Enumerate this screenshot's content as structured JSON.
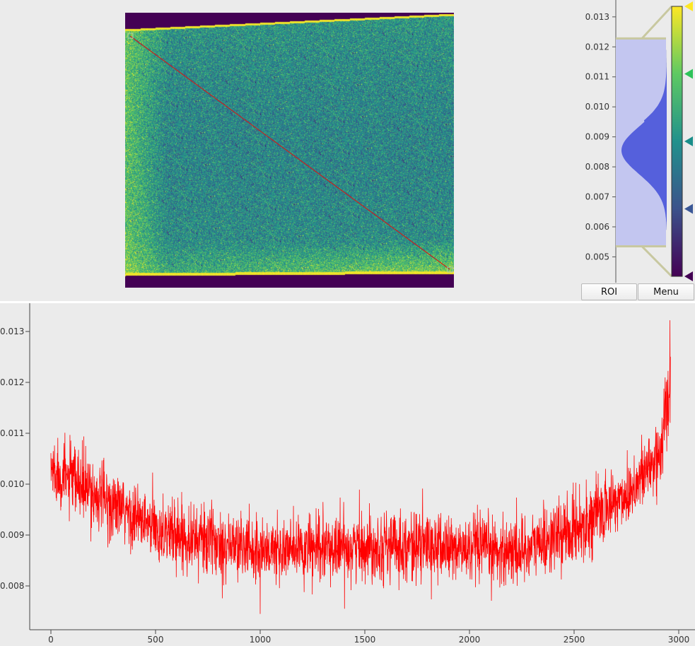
{
  "roi_button_label": "ROI",
  "menu_button_label": "Menu",
  "histogram": {
    "levels": {
      "min": 0.00535,
      "max": 0.01228
    },
    "range": [
      0.00435,
      0.01335
    ],
    "tick_labels": [
      "0.013",
      "0.012",
      "0.011",
      "0.010",
      "0.009",
      "0.008",
      "0.007",
      "0.006",
      "0.005"
    ],
    "ticks": [
      0.013,
      0.012,
      0.011,
      0.01,
      0.009,
      0.008,
      0.007,
      0.006,
      0.005
    ],
    "gradient_stops": [
      {
        "pos": 0.0,
        "color": "#fde725"
      },
      {
        "pos": 0.25,
        "color": "#5ec962"
      },
      {
        "pos": 0.5,
        "color": "#21918c"
      },
      {
        "pos": 0.75,
        "color": "#3b528b"
      },
      {
        "pos": 1.0,
        "color": "#440154"
      }
    ],
    "colors": {
      "region": "#c3c6f0",
      "fill": "#5560dc",
      "handle_line": "#c8c8a0"
    }
  },
  "chart_data": {
    "type": "line",
    "title": "",
    "xlabel": "",
    "ylabel": "",
    "xlim": [
      -200,
      3100
    ],
    "ylim": [
      0.0074,
      0.0135
    ],
    "xticks": [
      0,
      500,
      1000,
      1500,
      2000,
      2500,
      3000
    ],
    "yticks": [
      0.008,
      0.009,
      0.01,
      0.011,
      0.012,
      0.013
    ],
    "ytick_labels": [
      "0.008",
      "0.009",
      "0.010",
      "0.011",
      "0.012",
      "0.013"
    ],
    "n_points": 2961,
    "series": [
      {
        "color": "#ff0000",
        "trend_x": [
          0,
          250,
          500,
          750,
          1000,
          1250,
          1500,
          1750,
          2000,
          2250,
          2500,
          2750,
          2900,
          2960
        ],
        "trend_y": [
          0.0103,
          0.0097,
          0.0091,
          0.0089,
          0.0087,
          0.0087,
          0.0088,
          0.0088,
          0.0087,
          0.0087,
          0.0091,
          0.0098,
          0.0105,
          0.0118
        ],
        "noise_amplitude": 0.0006,
        "peak_max": {
          "x": 2958,
          "y": 0.01322
        },
        "peak_min": {
          "x": 1000,
          "y": 0.00745
        }
      }
    ]
  },
  "image_view": {
    "colormap": "viridis",
    "roi": {
      "start_label": "",
      "end_label": "",
      "color": "#c02020"
    }
  }
}
